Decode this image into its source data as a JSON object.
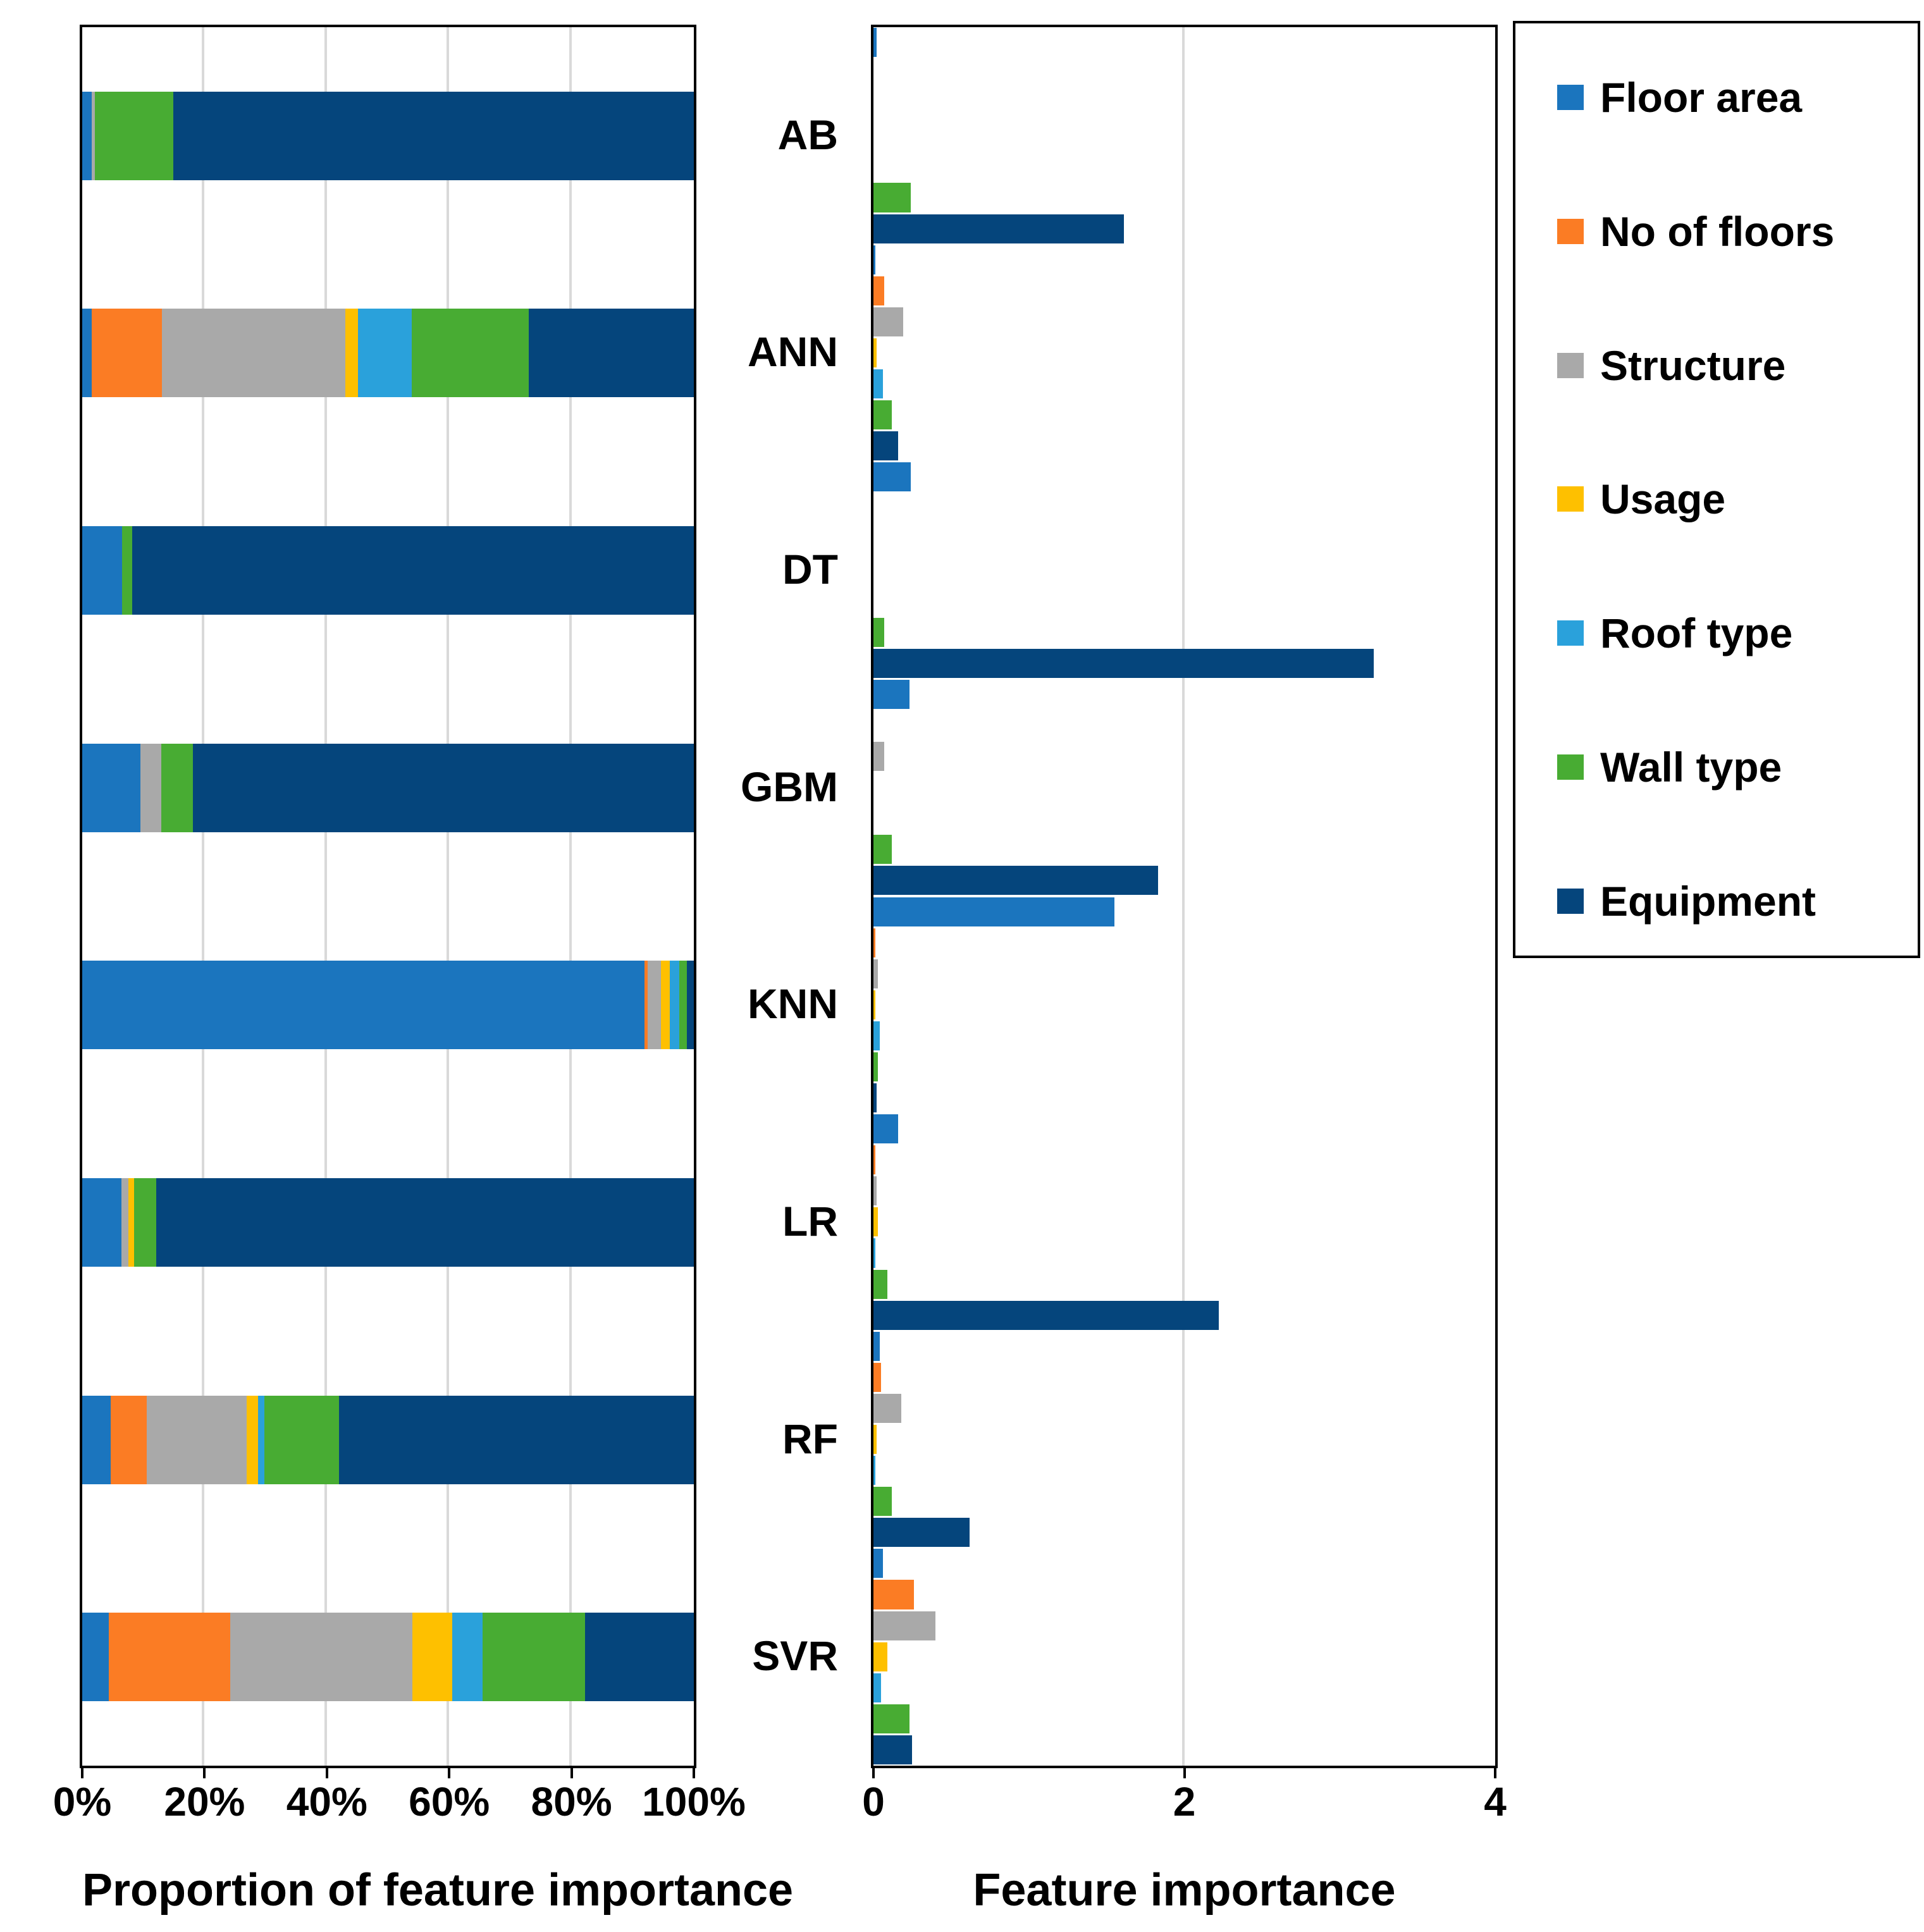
{
  "page": {
    "background": "#ffffff"
  },
  "colors": {
    "floor_area": "#1b75be",
    "no_of_floors": "#fb7c24",
    "structure": "#a9a9a9",
    "usage": "#fec000",
    "roof_type": "#2aa1db",
    "wall_type": "#48ac33",
    "equipment": "#05457c",
    "gridline": "#d9d9d9",
    "axis": "#000000"
  },
  "legend": {
    "items": [
      {
        "label": "Floor area",
        "key": "floor_area"
      },
      {
        "label": "No of floors",
        "key": "no_of_floors"
      },
      {
        "label": "Structure",
        "key": "structure"
      },
      {
        "label": "Usage",
        "key": "usage"
      },
      {
        "label": "Roof type",
        "key": "roof_type"
      },
      {
        "label": "Wall type",
        "key": "wall_type"
      },
      {
        "label": "Equipment",
        "key": "equipment"
      }
    ]
  },
  "chart_data": [
    {
      "type": "bar",
      "orientation": "horizontal",
      "mode": "stacked",
      "title": "Proportion of feature importance",
      "xlim": [
        0,
        100
      ],
      "xticks": [
        0,
        20,
        40,
        60,
        80,
        100
      ],
      "xtick_labels": [
        "0%",
        "20%",
        "40%",
        "60%",
        "80%",
        "100%"
      ],
      "grid": "on",
      "categories": [
        "AB",
        "ANN",
        "DT",
        "GBM",
        "KNN",
        "LR",
        "RF",
        "SVR"
      ],
      "series": [
        {
          "name": "Floor area",
          "key": "floor_area",
          "values": [
            1.6,
            1.6,
            6.5,
            9.5,
            91.9,
            6.4,
            4.7,
            4.3
          ]
        },
        {
          "name": "No of floors",
          "key": "no_of_floors",
          "values": [
            0,
            11.4,
            0,
            0,
            0.6,
            0,
            5.8,
            19.9
          ]
        },
        {
          "name": "Structure",
          "key": "structure",
          "values": [
            0.5,
            30.0,
            0,
            3.4,
            2.1,
            1.1,
            16.4,
            29.8
          ]
        },
        {
          "name": "Usage",
          "key": "usage",
          "values": [
            0,
            2.1,
            0,
            0,
            1.5,
            1.0,
            1.9,
            6.5
          ]
        },
        {
          "name": "Roof type",
          "key": "roof_type",
          "values": [
            0,
            8.8,
            0,
            0,
            1.5,
            0,
            1.0,
            5.0
          ]
        },
        {
          "name": "Wall type",
          "key": "wall_type",
          "values": [
            12.8,
            19.1,
            1.7,
            5.2,
            1.3,
            3.6,
            12.2,
            16.7
          ]
        },
        {
          "name": "Equipment",
          "key": "equipment",
          "values": [
            85.1,
            27.0,
            91.8,
            81.9,
            1.1,
            87.9,
            58.0,
            17.8
          ]
        }
      ]
    },
    {
      "type": "bar",
      "orientation": "horizontal",
      "mode": "grouped",
      "title": "Feature importance",
      "xlim": [
        0,
        4
      ],
      "xticks": [
        0,
        2,
        4
      ],
      "xtick_labels": [
        "0",
        "2",
        "4"
      ],
      "interior_gridlines": [
        2
      ],
      "grid": "on",
      "categories": [
        "AB",
        "ANN",
        "DT",
        "GBM",
        "KNN",
        "LR",
        "RF",
        "SVR"
      ],
      "series": [
        {
          "name": "Floor area",
          "key": "floor_area",
          "values": [
            0.02,
            0.01,
            0.24,
            0.23,
            1.55,
            0.16,
            0.04,
            0.06
          ]
        },
        {
          "name": "No of floors",
          "key": "no_of_floors",
          "values": [
            0,
            0.07,
            0,
            0,
            0.01,
            0.01,
            0.05,
            0.26
          ]
        },
        {
          "name": "Structure",
          "key": "structure",
          "values": [
            0,
            0.19,
            0,
            0.07,
            0.03,
            0.02,
            0.18,
            0.4
          ]
        },
        {
          "name": "Usage",
          "key": "usage",
          "values": [
            0,
            0.02,
            0,
            0,
            0.01,
            0.03,
            0.02,
            0.09
          ]
        },
        {
          "name": "Roof type",
          "key": "roof_type",
          "values": [
            0,
            0.06,
            0,
            0,
            0.04,
            0.01,
            0.01,
            0.05
          ]
        },
        {
          "name": "Wall type",
          "key": "wall_type",
          "values": [
            0.24,
            0.12,
            0.07,
            0.12,
            0.03,
            0.09,
            0.12,
            0.23
          ]
        },
        {
          "name": "Equipment",
          "key": "equipment",
          "values": [
            1.61,
            0.16,
            3.22,
            1.83,
            0.02,
            2.22,
            0.62,
            0.25
          ]
        }
      ]
    }
  ]
}
